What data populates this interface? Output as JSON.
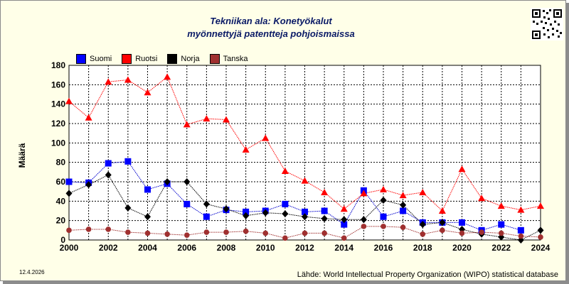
{
  "footer": {
    "date": "12.4.2026",
    "source": "Lähde: World Intellectual Property Organization (WIPO) statistical database"
  },
  "chart_data": {
    "type": "line",
    "title": "Tekniikan ala: Konetyökalut",
    "subtitle": "myönnettyjä patentteja pohjoismaissa",
    "xlabel": "",
    "ylabel": "Määrä",
    "xlim": [
      2000,
      2024
    ],
    "ylim": [
      0,
      180
    ],
    "xticks": [
      2000,
      2002,
      2004,
      2006,
      2008,
      2010,
      2012,
      2014,
      2016,
      2018,
      2020,
      2022,
      2024
    ],
    "yticks": [
      0,
      20,
      40,
      60,
      80,
      100,
      120,
      140,
      160,
      180
    ],
    "grid": true,
    "legend_position": "top-left",
    "x": [
      2000,
      2001,
      2002,
      2003,
      2004,
      2005,
      2006,
      2007,
      2008,
      2009,
      2010,
      2011,
      2012,
      2013,
      2014,
      2015,
      2016,
      2017,
      2018,
      2019,
      2020,
      2021,
      2022,
      2023,
      2024
    ],
    "series": [
      {
        "name": "Suomi",
        "color": "#0000ff",
        "line_color": "#0000cc",
        "marker": "square",
        "values": [
          60,
          59,
          79,
          81,
          52,
          58,
          37,
          24,
          31,
          29,
          30,
          37,
          29,
          30,
          16,
          51,
          24,
          30,
          18,
          18,
          18,
          10,
          16,
          10,
          null
        ]
      },
      {
        "name": "Ruotsi",
        "color": "#ff0000",
        "line_color": "#ff0000",
        "marker": "triangle",
        "values": [
          143,
          126,
          163,
          165,
          152,
          168,
          119,
          125,
          124,
          93,
          105,
          71,
          61,
          49,
          32,
          48,
          52,
          46,
          49,
          30,
          73,
          43,
          35,
          31,
          35
        ]
      },
      {
        "name": "Norja",
        "color": "#000000",
        "line_color": "#000000",
        "marker": "diamond",
        "values": [
          48,
          57,
          67,
          33,
          24,
          60,
          60,
          37,
          32,
          25,
          28,
          27,
          24,
          22,
          21,
          21,
          41,
          36,
          16,
          18,
          11,
          6,
          3,
          0,
          10
        ]
      },
      {
        "name": "Tanska",
        "color": "#a03030",
        "line_color": "#a03030",
        "marker": "circle",
        "values": [
          10,
          11,
          11,
          8,
          7,
          6,
          5,
          8,
          8,
          9,
          7,
          2,
          7,
          7,
          2,
          14,
          14,
          13,
          6,
          10,
          7,
          8,
          7,
          4,
          3
        ]
      }
    ]
  }
}
